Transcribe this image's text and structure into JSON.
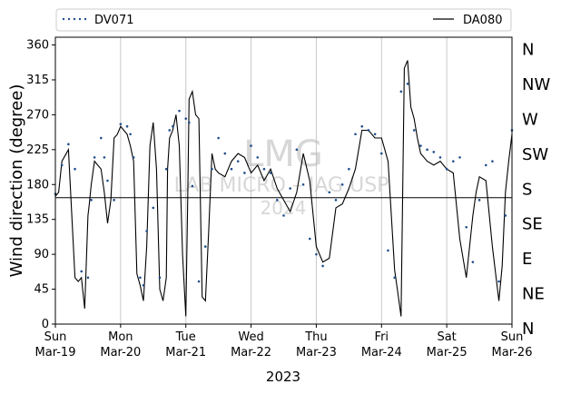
{
  "chart_data": {
    "type": "line",
    "xlabel": "2023",
    "ylabel": "Wind direction (degree)",
    "ylim": [
      0,
      370
    ],
    "xlim_days": [
      0,
      7
    ],
    "y_ticks": [
      0,
      45,
      90,
      135,
      180,
      225,
      270,
      315,
      360
    ],
    "x_ticks": [
      {
        "line1": "Sun",
        "line2": "Mar-19"
      },
      {
        "line1": "Mon",
        "line2": "Mar-20"
      },
      {
        "line1": "Tue",
        "line2": "Mar-21"
      },
      {
        "line1": "Wed",
        "line2": "Mar-22"
      },
      {
        "line1": "Thu",
        "line2": "Mar-23"
      },
      {
        "line1": "Fri",
        "line2": "Mar-24"
      },
      {
        "line1": "Sat",
        "line2": "Mar-25"
      },
      {
        "line1": "Sun",
        "line2": "Mar-26"
      }
    ],
    "compass_labels": [
      {
        "label": "N",
        "deg": 360
      },
      {
        "label": "NW",
        "deg": 315
      },
      {
        "label": "W",
        "deg": 270
      },
      {
        "label": "SW",
        "deg": 225
      },
      {
        "label": "S",
        "deg": 180
      },
      {
        "label": "SE",
        "deg": 135
      },
      {
        "label": "E",
        "deg": 90
      },
      {
        "label": "NE",
        "deg": 45
      },
      {
        "label": "N",
        "deg": 0
      }
    ],
    "reference_line_deg": 163,
    "grid": "vertical",
    "legend_placement": "top",
    "watermark": [
      "LMG",
      "LAB MICRO – IAG USP",
      "2024"
    ],
    "series": [
      {
        "name": "DV071",
        "style": "dots",
        "color": "#1f4e8c",
        "x": [
          0.0,
          0.1,
          0.2,
          0.3,
          0.4,
          0.5,
          0.55,
          0.6,
          0.7,
          0.75,
          0.8,
          0.9,
          1.0,
          1.1,
          1.15,
          1.2,
          1.3,
          1.35,
          1.4,
          1.5,
          1.6,
          1.7,
          1.75,
          1.8,
          1.9,
          2.0,
          2.05,
          2.1,
          2.2,
          2.3,
          2.4,
          2.5,
          2.6,
          2.7,
          2.8,
          2.9,
          3.0,
          3.1,
          3.2,
          3.3,
          3.4,
          3.5,
          3.6,
          3.7,
          3.8,
          3.9,
          4.0,
          4.1,
          4.2,
          4.3,
          4.4,
          4.5,
          4.6,
          4.7,
          4.8,
          4.9,
          5.0,
          5.1,
          5.2,
          5.3,
          5.4,
          5.5,
          5.6,
          5.7,
          5.8,
          5.9,
          6.0,
          6.1,
          6.2,
          6.3,
          6.4,
          6.5,
          6.6,
          6.7,
          6.8,
          6.9,
          7.0
        ],
        "values": [
          168,
          205,
          232,
          200,
          68,
          60,
          160,
          215,
          240,
          215,
          185,
          160,
          258,
          255,
          245,
          215,
          60,
          50,
          120,
          150,
          60,
          200,
          250,
          255,
          275,
          265,
          260,
          178,
          55,
          100,
          200,
          240,
          220,
          200,
          210,
          195,
          230,
          215,
          200,
          195,
          160,
          140,
          175,
          225,
          180,
          110,
          90,
          75,
          170,
          160,
          180,
          200,
          245,
          255,
          250,
          245,
          220,
          95,
          60,
          300,
          310,
          250,
          230,
          225,
          222,
          215,
          200,
          210,
          215,
          125,
          80,
          160,
          205,
          210,
          55,
          140,
          250
        ]
      },
      {
        "name": "DA080",
        "style": "line",
        "color": "#000000",
        "x": [
          0.0,
          0.05,
          0.1,
          0.2,
          0.3,
          0.35,
          0.4,
          0.45,
          0.5,
          0.52,
          0.55,
          0.6,
          0.7,
          0.75,
          0.8,
          0.85,
          0.9,
          0.95,
          1.0,
          1.05,
          1.1,
          1.15,
          1.2,
          1.25,
          1.3,
          1.35,
          1.4,
          1.45,
          1.5,
          1.55,
          1.6,
          1.65,
          1.7,
          1.72,
          1.75,
          1.8,
          1.85,
          1.9,
          1.95,
          2.0,
          2.03,
          2.05,
          2.1,
          2.15,
          2.2,
          2.25,
          2.3,
          2.35,
          2.4,
          2.45,
          2.5,
          2.6,
          2.7,
          2.8,
          2.9,
          3.0,
          3.1,
          3.2,
          3.3,
          3.4,
          3.5,
          3.6,
          3.7,
          3.8,
          3.9,
          4.0,
          4.1,
          4.2,
          4.3,
          4.4,
          4.5,
          4.6,
          4.7,
          4.8,
          4.9,
          5.0,
          5.1,
          5.2,
          5.25,
          5.3,
          5.35,
          5.4,
          5.45,
          5.5,
          5.55,
          5.6,
          5.7,
          5.8,
          5.9,
          6.0,
          6.1,
          6.2,
          6.3,
          6.4,
          6.45,
          6.5,
          6.6,
          6.7,
          6.8,
          6.85,
          6.9,
          6.95,
          7.0
        ],
        "values": [
          165,
          170,
          210,
          225,
          60,
          55,
          60,
          20,
          140,
          155,
          180,
          210,
          200,
          170,
          130,
          160,
          240,
          245,
          255,
          250,
          245,
          230,
          210,
          65,
          50,
          30,
          100,
          230,
          260,
          200,
          45,
          30,
          60,
          200,
          240,
          250,
          270,
          230,
          90,
          10,
          170,
          290,
          300,
          270,
          265,
          35,
          30,
          120,
          220,
          200,
          195,
          190,
          210,
          220,
          215,
          195,
          205,
          185,
          200,
          175,
          160,
          145,
          170,
          220,
          185,
          100,
          80,
          85,
          150,
          155,
          175,
          200,
          250,
          250,
          240,
          240,
          210,
          70,
          40,
          10,
          330,
          340,
          280,
          265,
          240,
          220,
          210,
          205,
          210,
          200,
          195,
          110,
          60,
          140,
          170,
          190,
          185,
          100,
          30,
          75,
          170,
          210,
          245
        ]
      }
    ]
  }
}
